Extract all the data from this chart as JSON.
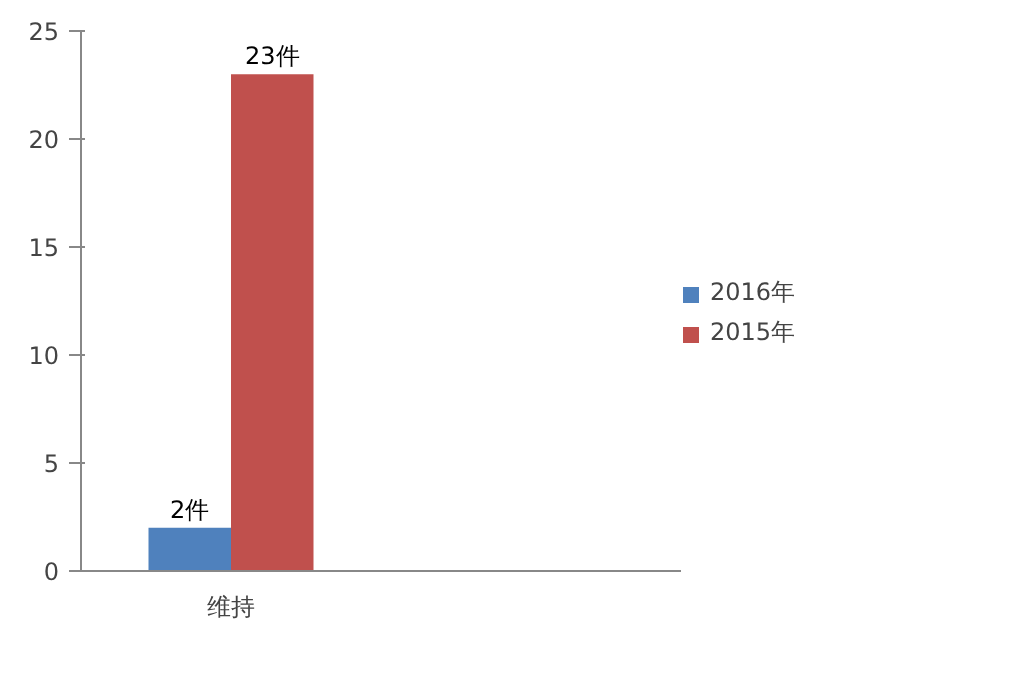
{
  "chart_data": {
    "type": "bar",
    "categories": [
      "维持",
      null
    ],
    "series": [
      {
        "name": "2016年",
        "color": "#4f81bd",
        "values": [
          2,
          null
        ],
        "value_labels": [
          "2件",
          null
        ]
      },
      {
        "name": "2015年",
        "color": "#c0504d",
        "values": [
          23,
          null
        ],
        "value_labels": [
          "23件",
          null
        ]
      }
    ],
    "ylim": [
      0,
      25
    ],
    "yticks": [
      0,
      5,
      10,
      15,
      20,
      25
    ],
    "grid": false,
    "legend": "right"
  }
}
